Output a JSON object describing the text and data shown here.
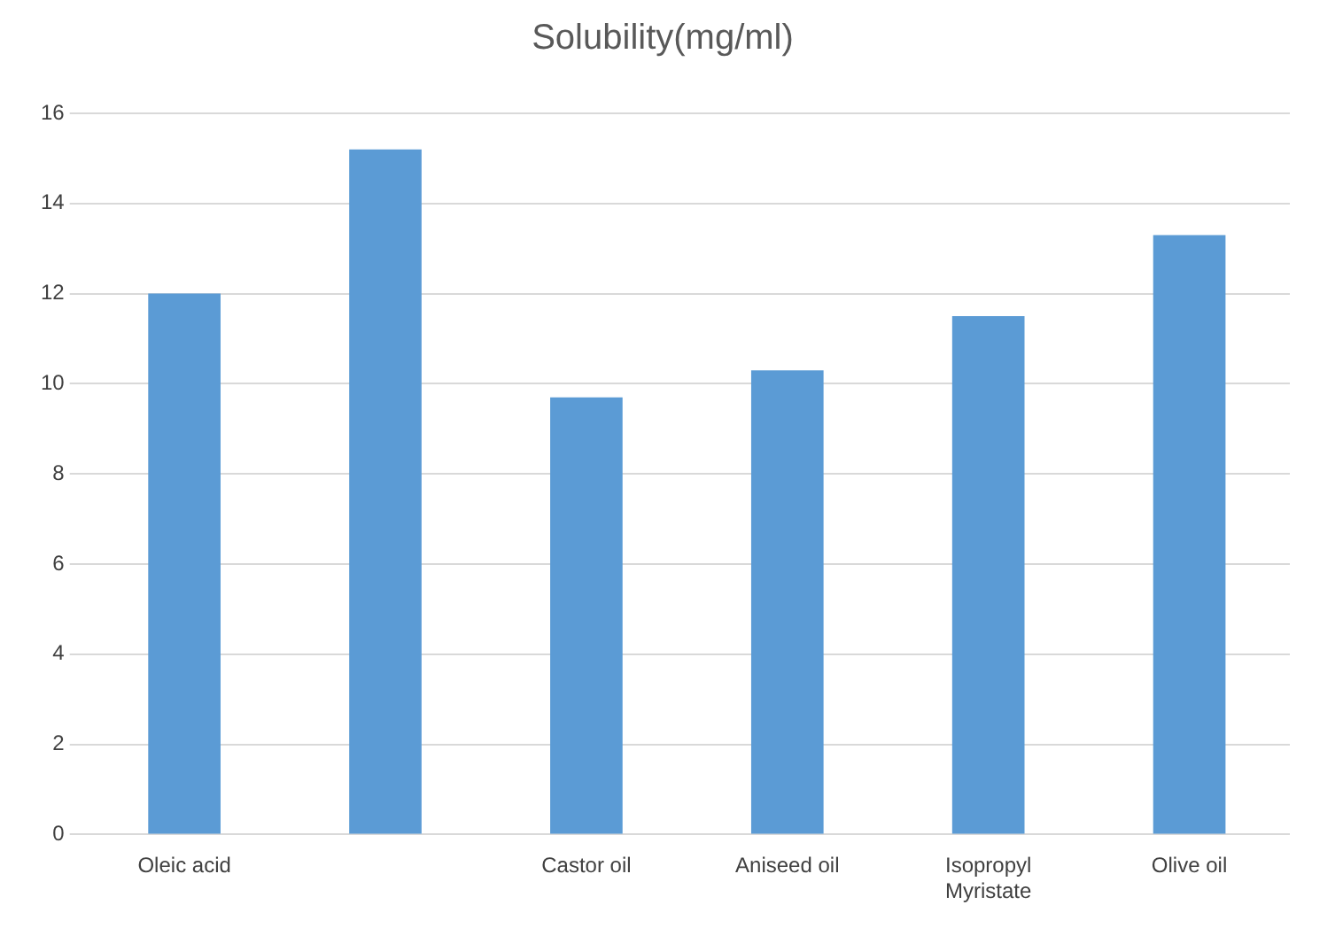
{
  "chart_data": {
    "type": "bar",
    "title": "Solubility(mg/ml)",
    "categories": [
      "Oleic acid",
      null,
      "Castor oil",
      "Aniseed oil",
      "Isopropyl Myristate",
      "Olive oil"
    ],
    "values": [
      12,
      15.2,
      9.7,
      10.3,
      11.5,
      13.3
    ],
    "color": "#5b9bd5",
    "ylim": [
      0,
      16
    ],
    "yticks": [
      0,
      2,
      4,
      6,
      8,
      10,
      12,
      14,
      16
    ],
    "grid": "y"
  }
}
